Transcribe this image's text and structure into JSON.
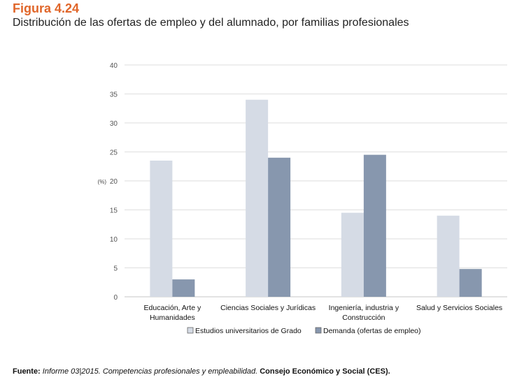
{
  "figure_number": "Figura 4.24",
  "figure_title": "Distribución de las ofertas de empleo y del alumnado, por familias profesionales",
  "source": {
    "label": "Fuente:",
    "text": "Informe 03|2015. Competencias profesionales y empleabilidad.",
    "org": "Consejo Económico y Social (CES)."
  },
  "chart_data": {
    "type": "bar",
    "title": "Distribución de las ofertas de empleo y del alumnado, por familias profesionales",
    "xlabel": "",
    "ylabel": "(%)",
    "ylim": [
      0,
      40
    ],
    "yticks": [
      0,
      5,
      10,
      15,
      20,
      25,
      30,
      35,
      40
    ],
    "grid": true,
    "legend": "bottom",
    "categories": [
      [
        "Educación, Arte y",
        "Humanidades"
      ],
      [
        "Ciencias Sociales y Jurídicas"
      ],
      [
        "Ingeniería, industria y",
        "Construcción"
      ],
      [
        "Salud y Servicios Sociales"
      ]
    ],
    "series": [
      {
        "name": "Estudios universitarios de Grado",
        "color": "#d5dbe5",
        "values": [
          23.5,
          34,
          14.5,
          14
        ]
      },
      {
        "name": "Demanda (ofertas de empleo)",
        "color": "#8797ae",
        "values": [
          3,
          24,
          24.5,
          4.8
        ]
      }
    ]
  }
}
